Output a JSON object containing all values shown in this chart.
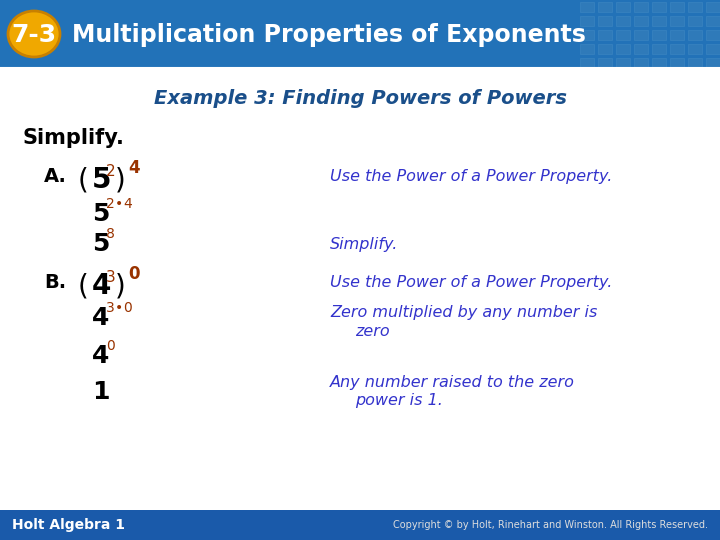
{
  "header_bg_color": "#2e7ec2",
  "header_text": "Multiplication Properties of Exponents",
  "header_badge": "7-3",
  "header_badge_bg": "#f0a800",
  "header_text_color": "#ffffff",
  "example_title": "Example 3: Finding Powers of Powers",
  "example_title_color": "#1a4f8a",
  "body_bg_color": "#cfe0f0",
  "simplify_label": "Simplify.",
  "simplify_color": "#000000",
  "exponent_color": "#993300",
  "italic_color": "#3333cc",
  "footer_bg": "#1a5aaa",
  "footer_left": "Holt Algebra 1",
  "footer_right": "Copyright © by Holt, Rinehart and Winston. All Rights Reserved.",
  "footer_text_color": "#ffffff"
}
